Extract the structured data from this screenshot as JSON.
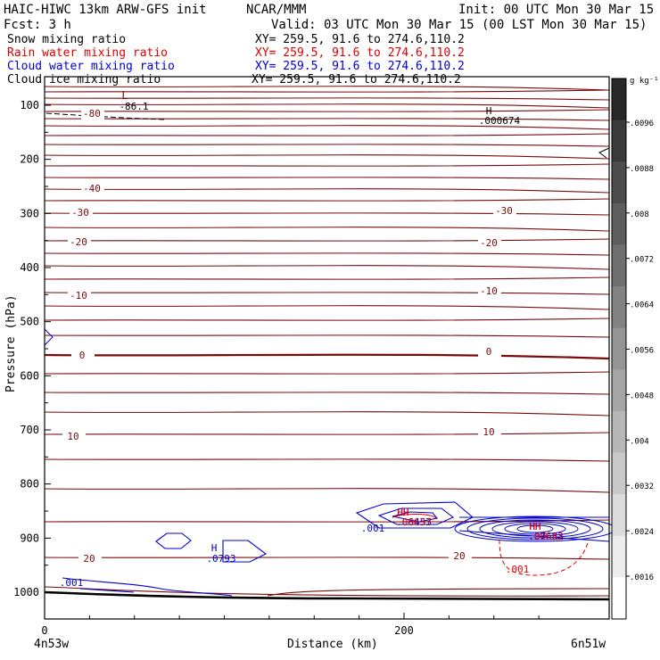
{
  "header": {
    "model": "HAIC-HIWC 13km ARW-GFS init",
    "org": "NCAR/MMM",
    "init": "Init: 00 UTC Mon 30 Mar 15",
    "fcst": "Fcst:  3 h",
    "valid": "Valid: 03 UTC Mon 30 Mar 15 (00 LST Mon 30 Mar 15)"
  },
  "fields": [
    {
      "name": "Snow mixing ratio",
      "xy": "XY= 259.5, 91.6 to 274.6,110.2",
      "color": "#000000"
    },
    {
      "name": "Rain water mixing ratio",
      "xy": "XY= 259.5, 91.6 to 274.6,110.2",
      "color": "#e00000"
    },
    {
      "name": "Cloud water mixing ratio",
      "xy": "XY= 259.5, 91.6 to 274.6,110.2",
      "color": "#0000d0"
    },
    {
      "name": "Cloud ice mixing ratio",
      "xy": "XY= 259.5, 91.6 to 274.6,110.2",
      "color": "#000000"
    }
  ],
  "chart_data": {
    "type": "contour",
    "xlabel": "Distance (km)",
    "ylabel": "Pressure (hPa)",
    "x_start_label": "4n53w",
    "x_end_label": "6n51w",
    "x_ticks": [
      0,
      200
    ],
    "y_ticks": [
      100,
      200,
      300,
      400,
      500,
      600,
      700,
      800,
      900,
      1000
    ],
    "colorbar": {
      "unit": "g kg⁻¹",
      "labels": [
        ".0096",
        ".0088",
        ".008",
        ".0072",
        ".0064",
        ".0056",
        ".0048",
        ".004",
        ".0032",
        ".0024",
        ".0016"
      ]
    },
    "temperature_contour_labels": [
      "-80",
      "-40",
      "-30",
      "-20",
      "-10",
      "0",
      "10",
      "20",
      "-30",
      "-20",
      "-10",
      "0",
      "10",
      "20"
    ],
    "annotations": [
      {
        "text": "L",
        "color": "#8b0000"
      },
      {
        "text": "-86.1",
        "color": "#000000"
      },
      {
        "text": "H",
        "color": "#000000"
      },
      {
        "text": ".000674",
        "color": "#000000"
      },
      {
        "text": ".001",
        "color": "#0000d0"
      },
      {
        "text": "H",
        "color": "#0000d0"
      },
      {
        "text": ".0793",
        "color": "#0000d0"
      },
      {
        "text": "HH",
        "color": "#0000d0"
      },
      {
        "text": ".06453",
        "color": "#0000d0"
      },
      {
        "text": ".001",
        "color": "#0000d0"
      },
      {
        "text": "HH",
        "color": "#e00000"
      },
      {
        "text": ".00637",
        "color": "#e00000"
      },
      {
        "text": "HH",
        "color": "#0000d0"
      },
      {
        "text": ".07683",
        "color": "#0000d0"
      },
      {
        "text": "HH",
        "color": "#e00000"
      },
      {
        "text": ".00642",
        "color": "#e00000"
      },
      {
        "text": ".001",
        "color": "#e00000"
      }
    ]
  }
}
